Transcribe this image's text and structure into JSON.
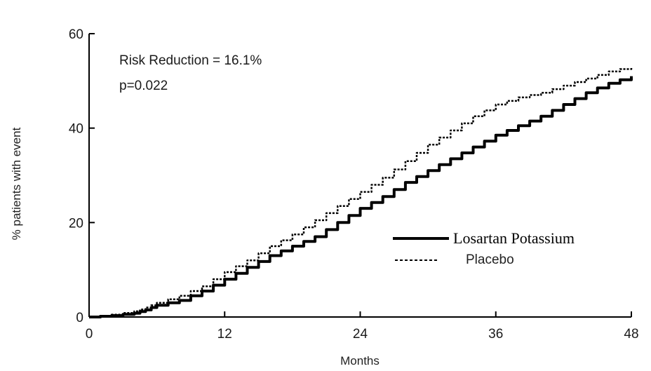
{
  "chart_data": {
    "type": "line",
    "xlabel": "Months",
    "ylabel": "% patients with event",
    "xlim": [
      0,
      48
    ],
    "ylim": [
      0,
      60
    ],
    "x_ticks": [
      0,
      12,
      24,
      36,
      48
    ],
    "y_ticks": [
      0,
      20,
      40,
      60
    ],
    "grid": false,
    "legend_position": "lower-right",
    "annotations": {
      "line1": "Risk Reduction = 16.1%",
      "line2": "p=0.022"
    },
    "series": [
      {
        "name": "Losartan Potassium",
        "style": "solid",
        "color": "#000000",
        "x": [
          0,
          2,
          4,
          5,
          6,
          8,
          10,
          12,
          14,
          16,
          18,
          20,
          22,
          24,
          26,
          28,
          30,
          32,
          34,
          36,
          38,
          40,
          42,
          44,
          46,
          48
        ],
        "y": [
          0,
          0.3,
          0.8,
          1.5,
          2.5,
          3.5,
          5.5,
          8.0,
          10.5,
          13.0,
          15.0,
          17.0,
          20.0,
          23.0,
          25.5,
          28.5,
          31.0,
          33.5,
          36.0,
          38.5,
          40.5,
          42.5,
          45.0,
          47.5,
          49.5,
          51.0
        ]
      },
      {
        "name": "Placebo",
        "style": "dashed",
        "color": "#000000",
        "x": [
          0,
          2,
          4,
          5,
          6,
          8,
          10,
          12,
          14,
          16,
          18,
          20,
          22,
          24,
          26,
          28,
          30,
          32,
          34,
          36,
          38,
          40,
          42,
          44,
          46,
          48
        ],
        "y": [
          0,
          0.5,
          1.2,
          2.0,
          3.0,
          4.5,
          6.5,
          9.5,
          12.0,
          15.0,
          17.5,
          20.5,
          23.5,
          26.5,
          29.5,
          33.0,
          36.5,
          39.5,
          42.5,
          45.0,
          46.5,
          47.5,
          49.0,
          50.5,
          52.0,
          53.0
        ]
      }
    ]
  }
}
